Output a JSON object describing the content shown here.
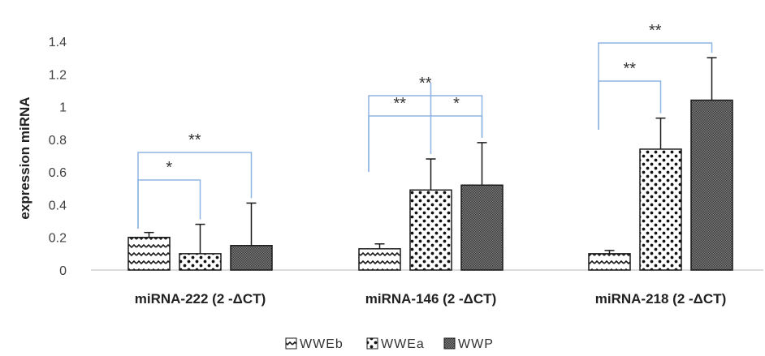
{
  "chart_data": {
    "type": "bar",
    "ylabel": "expression miRNA",
    "ylim": [
      0,
      1.4
    ],
    "yticks": [
      "0",
      "0.2",
      "0.4",
      "0.6",
      "0.8",
      "1",
      "1.2",
      "1.4"
    ],
    "grid": false,
    "legend_position": "bottom",
    "categories": [
      "miRNA-222 (2 -ΔCT)",
      "miRNA-146 (2 -ΔCT)",
      "miRNA-218 (2 -ΔCT)"
    ],
    "series": [
      {
        "name": "WWEb",
        "values": [
          0.2,
          0.13,
          0.1
        ],
        "errors": [
          0.03,
          0.03,
          0.02
        ],
        "pattern": "zigzag"
      },
      {
        "name": "WWEa",
        "values": [
          0.1,
          0.49,
          0.74
        ],
        "errors": [
          0.18,
          0.19,
          0.19
        ],
        "pattern": "dots"
      },
      {
        "name": "WWP",
        "values": [
          0.15,
          0.52,
          1.04
        ],
        "errors": [
          0.26,
          0.26,
          0.26
        ],
        "pattern": "dense"
      }
    ],
    "significance": [
      {
        "category": 0,
        "from": 0,
        "to": 2,
        "label": "**"
      },
      {
        "category": 0,
        "from": 0,
        "to": 1,
        "label": "*"
      },
      {
        "category": 1,
        "from": 0,
        "to": 2,
        "label": "**"
      },
      {
        "category": 1,
        "from": 0,
        "to": 1,
        "label": "**"
      },
      {
        "category": 1,
        "from": 1,
        "to": 2,
        "label": "*"
      },
      {
        "category": 2,
        "from": 0,
        "to": 2,
        "label": "**"
      },
      {
        "category": 2,
        "from": 0,
        "to": 1,
        "label": "**"
      }
    ],
    "colors": {
      "bar_stroke": "#1a1a1a",
      "bracket": "#8db4e2",
      "axis": "#d0d0d0",
      "text": "#333333"
    }
  }
}
